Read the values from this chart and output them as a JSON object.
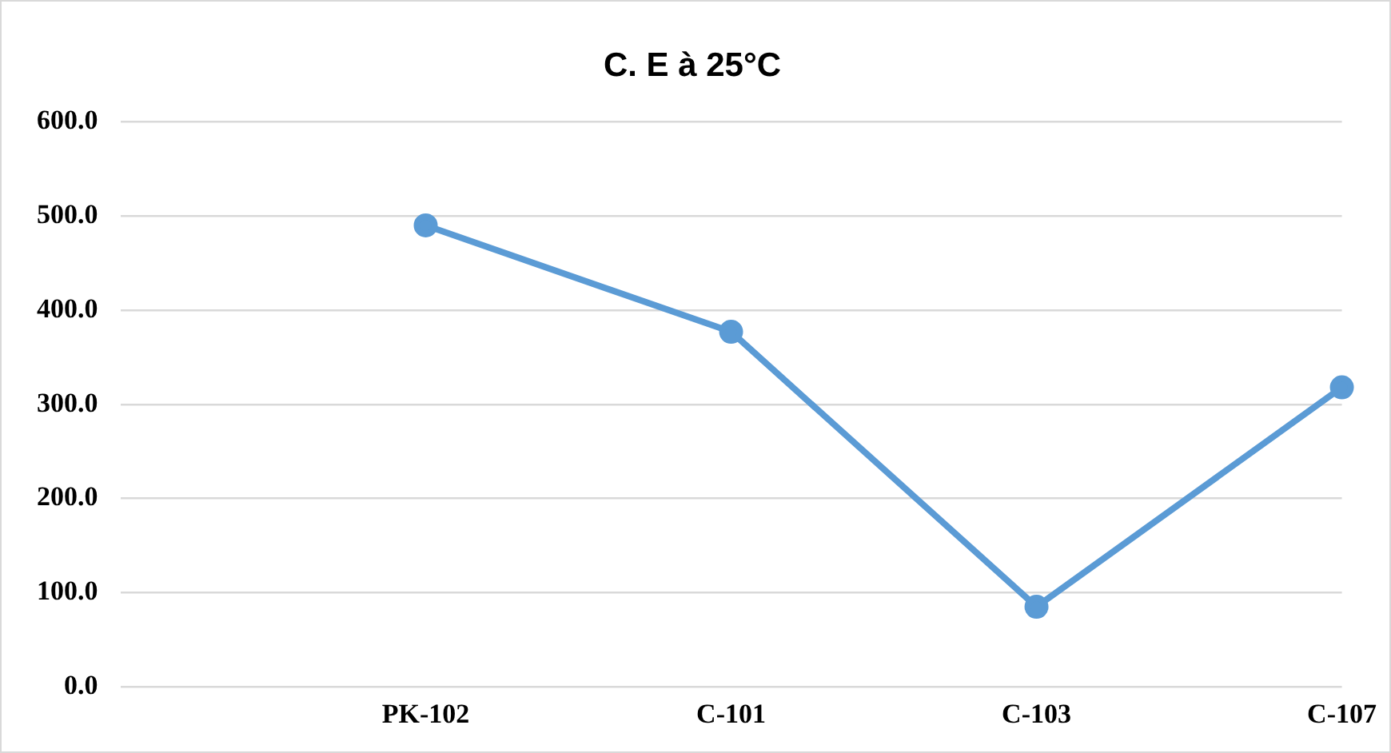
{
  "chart_data": {
    "type": "line",
    "title": "C. E à 25°C",
    "categories": [
      null,
      "PK-102",
      "C-101",
      "C-103",
      "C-107"
    ],
    "series": [
      {
        "color": "#5b9bd5",
        "values": [
          null,
          490,
          377,
          85,
          318
        ]
      }
    ],
    "ylim": [
      0,
      600
    ],
    "yticks": [
      {
        "value": 0,
        "label": "0.0"
      },
      {
        "value": 100,
        "label": "100.0"
      },
      {
        "value": 200,
        "label": "200.0"
      },
      {
        "value": 300,
        "label": "300.0"
      },
      {
        "value": 400,
        "label": "400.0"
      },
      {
        "value": 500,
        "label": "500.0"
      },
      {
        "value": 600,
        "label": "600.0"
      }
    ],
    "grid": "y",
    "legend": false,
    "marker": "circle",
    "line_style": "solid"
  }
}
